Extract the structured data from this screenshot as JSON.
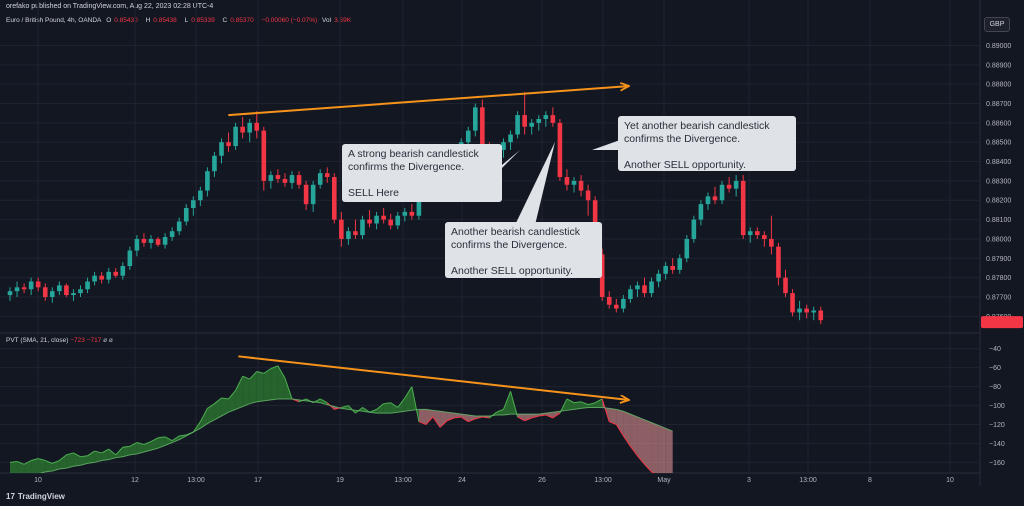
{
  "header": {
    "published": "orefako published on TradingView.com, Aug 22, 2023 02:28 UTC-4",
    "symbol": "Euro / British Pound, 4h, OANDA",
    "o_label": "O",
    "o_value": "0.85430",
    "h_label": "H",
    "h_value": "0.85438",
    "l_label": "L",
    "l_value": "0.85339",
    "c_label": "C",
    "c_value": "0.85370",
    "change": "−0.00060 (−0.07%)",
    "vol_label": "Vol",
    "vol_value": "3.59K",
    "currency": "GBP"
  },
  "indicator": {
    "name": "PVT (SMA, 21, close)",
    "v1": "−723",
    "v2": "−717",
    "z1": "ø",
    "z2": "ø"
  },
  "annotations": {
    "a1": "A strong bearish candlestick\nconfirms the Divergence.\n\nSELL Here",
    "a2": "Another bearish candlestick\nconfirms the Divergence.\n\nAnother SELL opportunity.",
    "a3": "Yet another bearish candlestick\nconfirms the Divergence.\n\nAnother SELL opportunity."
  },
  "brand": {
    "name": "TradingView"
  },
  "colors": {
    "up": "#26a69a",
    "down": "#f23645",
    "trendline": "#f7931a",
    "bg": "#131722",
    "grid": "#1f2330",
    "pvt_up_fill": "#2e7d32",
    "pvt_down_fill": "#ef9a9a"
  },
  "chart_data": [
    {
      "type": "candlestick",
      "title": "Euro / British Pound, 4h, OANDA",
      "x_ticks": [
        "10",
        "12",
        "13:00",
        "17",
        "19",
        "13:00",
        "24",
        "26",
        "13:00",
        "May",
        "3",
        "13:00",
        "8",
        "10"
      ],
      "y_ticks": [
        0.876,
        0.877,
        0.878,
        0.879,
        0.88,
        0.881,
        0.882,
        0.883,
        0.884,
        0.885,
        0.886,
        0.887,
        0.888,
        0.889,
        0.89
      ],
      "ylim": [
        0.8755,
        0.8908
      ],
      "candles": [
        [
          0.8771,
          0.8775,
          0.8768,
          0.8773
        ],
        [
          0.8773,
          0.8778,
          0.877,
          0.8775
        ],
        [
          0.8775,
          0.8777,
          0.8772,
          0.8774
        ],
        [
          0.8774,
          0.878,
          0.8771,
          0.8778
        ],
        [
          0.8778,
          0.878,
          0.8773,
          0.8775
        ],
        [
          0.8775,
          0.8777,
          0.8768,
          0.877
        ],
        [
          0.877,
          0.8775,
          0.8767,
          0.8773
        ],
        [
          0.8773,
          0.8778,
          0.8771,
          0.8776
        ],
        [
          0.8776,
          0.8777,
          0.877,
          0.8771
        ],
        [
          0.8771,
          0.8774,
          0.8768,
          0.8772
        ],
        [
          0.8772,
          0.8776,
          0.877,
          0.8774
        ],
        [
          0.8774,
          0.878,
          0.8772,
          0.8778
        ],
        [
          0.8778,
          0.8783,
          0.8776,
          0.8781
        ],
        [
          0.8781,
          0.8783,
          0.8777,
          0.8779
        ],
        [
          0.8779,
          0.8785,
          0.8777,
          0.8783
        ],
        [
          0.8783,
          0.8785,
          0.878,
          0.8781
        ],
        [
          0.8781,
          0.8788,
          0.8779,
          0.8786
        ],
        [
          0.8786,
          0.8796,
          0.8784,
          0.8794
        ],
        [
          0.8794,
          0.8802,
          0.8791,
          0.88
        ],
        [
          0.88,
          0.8803,
          0.8796,
          0.8798
        ],
        [
          0.8798,
          0.8802,
          0.8795,
          0.88
        ],
        [
          0.88,
          0.8801,
          0.8796,
          0.8797
        ],
        [
          0.8797,
          0.8803,
          0.8795,
          0.8801
        ],
        [
          0.8801,
          0.8806,
          0.8799,
          0.8804
        ],
        [
          0.8804,
          0.8811,
          0.8802,
          0.8809
        ],
        [
          0.8809,
          0.8818,
          0.8807,
          0.8816
        ],
        [
          0.8816,
          0.8822,
          0.8812,
          0.882
        ],
        [
          0.882,
          0.8827,
          0.8817,
          0.8825
        ],
        [
          0.8825,
          0.8837,
          0.8822,
          0.8835
        ],
        [
          0.8835,
          0.8845,
          0.8832,
          0.8843
        ],
        [
          0.8843,
          0.8852,
          0.8839,
          0.885
        ],
        [
          0.885,
          0.8855,
          0.8845,
          0.8848
        ],
        [
          0.8848,
          0.886,
          0.8846,
          0.8858
        ],
        [
          0.8858,
          0.8863,
          0.8852,
          0.8855
        ],
        [
          0.8855,
          0.8862,
          0.885,
          0.886
        ],
        [
          0.886,
          0.8866,
          0.8852,
          0.8856
        ],
        [
          0.8856,
          0.8858,
          0.8825,
          0.883
        ],
        [
          0.883,
          0.8835,
          0.8826,
          0.8833
        ],
        [
          0.8833,
          0.8836,
          0.8829,
          0.8831
        ],
        [
          0.8831,
          0.8834,
          0.8827,
          0.8829
        ],
        [
          0.8829,
          0.8835,
          0.8826,
          0.8833
        ],
        [
          0.8833,
          0.8835,
          0.8826,
          0.8828
        ],
        [
          0.8828,
          0.883,
          0.8815,
          0.8818
        ],
        [
          0.8818,
          0.883,
          0.8814,
          0.8828
        ],
        [
          0.8828,
          0.8836,
          0.8826,
          0.8834
        ],
        [
          0.8834,
          0.8837,
          0.8829,
          0.8832
        ],
        [
          0.8832,
          0.8834,
          0.8808,
          0.881
        ],
        [
          0.881,
          0.8814,
          0.8796,
          0.88
        ],
        [
          0.88,
          0.8806,
          0.8797,
          0.8804
        ],
        [
          0.8804,
          0.881,
          0.88,
          0.8802
        ],
        [
          0.8802,
          0.8812,
          0.88,
          0.881
        ],
        [
          0.881,
          0.8815,
          0.8806,
          0.8808
        ],
        [
          0.8808,
          0.8814,
          0.8805,
          0.8812
        ],
        [
          0.8812,
          0.8816,
          0.8808,
          0.881
        ],
        [
          0.881,
          0.8813,
          0.8805,
          0.8807
        ],
        [
          0.8807,
          0.8814,
          0.8805,
          0.8812
        ],
        [
          0.8812,
          0.8816,
          0.8809,
          0.8814
        ],
        [
          0.8814,
          0.8818,
          0.881,
          0.8812
        ],
        [
          0.8812,
          0.8826,
          0.881,
          0.8824
        ],
        [
          0.8824,
          0.8838,
          0.8822,
          0.8836
        ],
        [
          0.8836,
          0.8842,
          0.8832,
          0.884
        ],
        [
          0.884,
          0.8844,
          0.8835,
          0.8838
        ],
        [
          0.8838,
          0.8846,
          0.8836,
          0.8844
        ],
        [
          0.8844,
          0.8848,
          0.8838,
          0.8842
        ],
        [
          0.8842,
          0.8852,
          0.884,
          0.885
        ],
        [
          0.885,
          0.8858,
          0.8847,
          0.8856
        ],
        [
          0.8856,
          0.887,
          0.8853,
          0.8868
        ],
        [
          0.8868,
          0.8872,
          0.884,
          0.8845
        ],
        [
          0.8845,
          0.885,
          0.8839,
          0.8842
        ],
        [
          0.8842,
          0.8848,
          0.884,
          0.8846
        ],
        [
          0.8846,
          0.8852,
          0.8842,
          0.885
        ],
        [
          0.885,
          0.8856,
          0.8846,
          0.8854
        ],
        [
          0.8854,
          0.8866,
          0.8852,
          0.8864
        ],
        [
          0.8864,
          0.8876,
          0.8854,
          0.8858
        ],
        [
          0.8858,
          0.8862,
          0.8854,
          0.886
        ],
        [
          0.886,
          0.8864,
          0.8856,
          0.8862
        ],
        [
          0.8862,
          0.8866,
          0.8858,
          0.8864
        ],
        [
          0.8864,
          0.8868,
          0.8858,
          0.886
        ],
        [
          0.886,
          0.8862,
          0.883,
          0.8832
        ],
        [
          0.8832,
          0.8836,
          0.8825,
          0.8828
        ],
        [
          0.8828,
          0.8832,
          0.8824,
          0.883
        ],
        [
          0.883,
          0.8833,
          0.8822,
          0.8825
        ],
        [
          0.8825,
          0.8828,
          0.8812,
          0.882
        ],
        [
          0.882,
          0.8822,
          0.879,
          0.8792
        ],
        [
          0.8792,
          0.8795,
          0.8768,
          0.877
        ],
        [
          0.877,
          0.8773,
          0.8764,
          0.8766
        ],
        [
          0.8766,
          0.8769,
          0.8762,
          0.8764
        ],
        [
          0.8764,
          0.8771,
          0.8762,
          0.8769
        ],
        [
          0.8769,
          0.8776,
          0.8767,
          0.8774
        ],
        [
          0.8774,
          0.8778,
          0.877,
          0.8776
        ],
        [
          0.8776,
          0.878,
          0.877,
          0.8772
        ],
        [
          0.8772,
          0.878,
          0.877,
          0.8778
        ],
        [
          0.8778,
          0.8784,
          0.8775,
          0.8782
        ],
        [
          0.8782,
          0.8788,
          0.8779,
          0.8786
        ],
        [
          0.8786,
          0.879,
          0.8782,
          0.8784
        ],
        [
          0.8784,
          0.8792,
          0.8782,
          0.879
        ],
        [
          0.879,
          0.8802,
          0.8788,
          0.88
        ],
        [
          0.88,
          0.8812,
          0.8798,
          0.881
        ],
        [
          0.881,
          0.882,
          0.8807,
          0.8818
        ],
        [
          0.8818,
          0.8824,
          0.8815,
          0.8822
        ],
        [
          0.8822,
          0.8827,
          0.8818,
          0.882
        ],
        [
          0.882,
          0.883,
          0.8818,
          0.8828
        ],
        [
          0.8828,
          0.8832,
          0.8824,
          0.8826
        ],
        [
          0.8826,
          0.8833,
          0.8822,
          0.883
        ],
        [
          0.883,
          0.8833,
          0.88,
          0.8802
        ],
        [
          0.8802,
          0.8806,
          0.8798,
          0.8804
        ],
        [
          0.8804,
          0.8806,
          0.88,
          0.8802
        ],
        [
          0.8802,
          0.8804,
          0.8796,
          0.88
        ],
        [
          0.88,
          0.8812,
          0.8792,
          0.8796
        ],
        [
          0.8796,
          0.8798,
          0.8776,
          0.878
        ],
        [
          0.878,
          0.8784,
          0.877,
          0.8772
        ],
        [
          0.8772,
          0.8774,
          0.876,
          0.8762
        ],
        [
          0.8762,
          0.8768,
          0.8758,
          0.8764
        ],
        [
          0.8764,
          0.8766,
          0.8759,
          0.8762
        ],
        [
          0.8762,
          0.8765,
          0.8758,
          0.8763
        ],
        [
          0.8763,
          0.8765,
          0.8756,
          0.8758
        ]
      ],
      "trendline": {
        "from": {
          "index": 26,
          "value": 0.8864
        },
        "to": {
          "index": 82,
          "value": 0.8879
        }
      }
    },
    {
      "type": "area",
      "title": "PVT (SMA, 21, close)",
      "y_ticks": [
        -40,
        -60,
        -80,
        -100,
        -120,
        -140,
        -160
      ],
      "ylim": [
        -168,
        -35
      ],
      "series": [
        {
          "name": "PVT",
          "values": [
            -160,
            -159,
            -162,
            -158,
            -156,
            -158,
            -161,
            -158,
            -152,
            -150,
            -154,
            -153,
            -148,
            -150,
            -146,
            -152,
            -144,
            -143,
            -139,
            -141,
            -138,
            -134,
            -133,
            -137,
            -132,
            -131,
            -128,
            -117,
            -103,
            -98,
            -92,
            -93,
            -84,
            -69,
            -72,
            -64,
            -66,
            -61,
            -58,
            -71,
            -93,
            -96,
            -93,
            -97,
            -93,
            -97,
            -104,
            -102,
            -100,
            -108,
            -102,
            -107,
            -104,
            -98,
            -97,
            -102,
            -92,
            -80,
            -117,
            -120,
            -112,
            -123,
            -116,
            -113,
            -112,
            -117,
            -114,
            -112,
            -113,
            -107,
            -104,
            -85,
            -112,
            -116,
            -113,
            -111,
            -110,
            -113,
            -108,
            -93,
            -97,
            -96,
            -99,
            -97,
            -93,
            -117,
            -120,
            -132,
            -143,
            -153,
            -162,
            -170,
            -174,
            -178,
            -183
          ]
        },
        {
          "name": "SMA",
          "values": [
            -176,
            -175,
            -174,
            -173,
            -172,
            -170,
            -169,
            -167,
            -166,
            -164,
            -163,
            -161,
            -160,
            -158,
            -157,
            -155,
            -154,
            -152,
            -151,
            -149,
            -147,
            -145,
            -142,
            -139,
            -136,
            -132,
            -128,
            -124,
            -119,
            -115,
            -111,
            -107,
            -104,
            -101,
            -98,
            -96,
            -95,
            -94,
            -93,
            -93,
            -93,
            -94,
            -95,
            -96,
            -97,
            -99,
            -101,
            -103,
            -104,
            -105,
            -106,
            -107,
            -108,
            -108,
            -108,
            -107,
            -106,
            -105,
            -104,
            -104,
            -105,
            -106,
            -107,
            -108,
            -109,
            -110,
            -111,
            -111,
            -111,
            -110,
            -110,
            -109,
            -109,
            -109,
            -109,
            -109,
            -108,
            -107,
            -106,
            -105,
            -104,
            -103,
            -102,
            -102,
            -102,
            -103,
            -104,
            -106,
            -109,
            -112,
            -115,
            -118,
            -121,
            -124,
            -127
          ]
        }
      ],
      "trendline": {
        "from": {
          "index": 26,
          "value": -48
        },
        "to": {
          "index": 82,
          "value": -94
        }
      }
    }
  ]
}
